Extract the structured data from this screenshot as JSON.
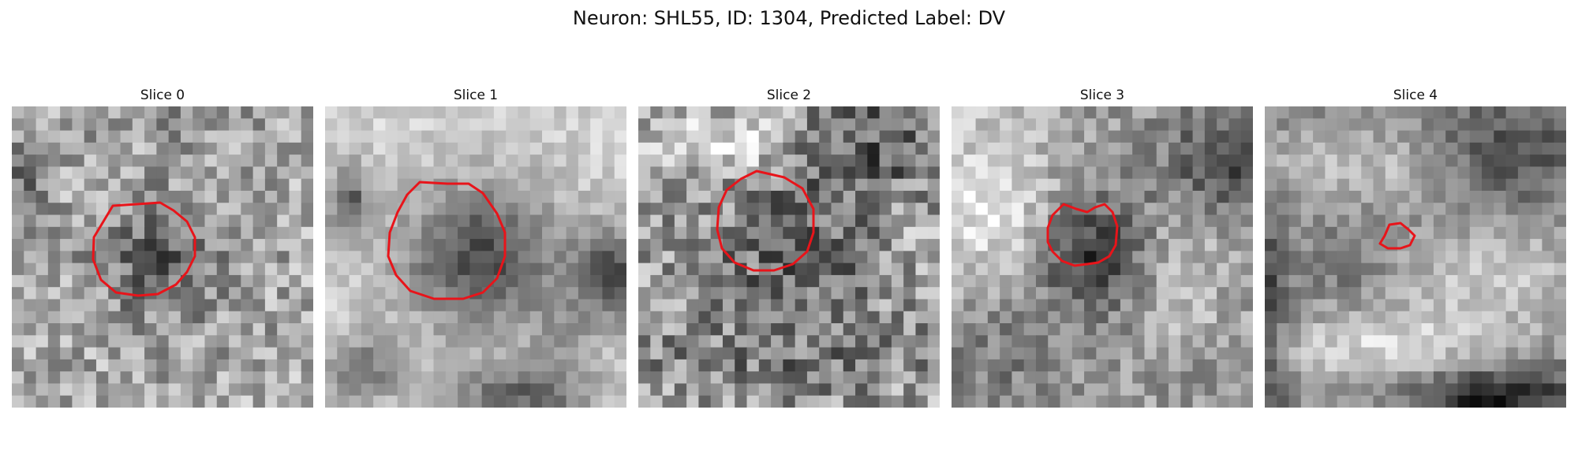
{
  "title": "Neuron: SHL55, ID: 1304, Predicted Label: DV",
  "contour_color": "#e8141a",
  "slices": [
    {
      "label": "Slice 0"
    },
    {
      "label": "Slice 1"
    },
    {
      "label": "Slice 2"
    },
    {
      "label": "Slice 3"
    },
    {
      "label": "Slice 4"
    }
  ]
}
